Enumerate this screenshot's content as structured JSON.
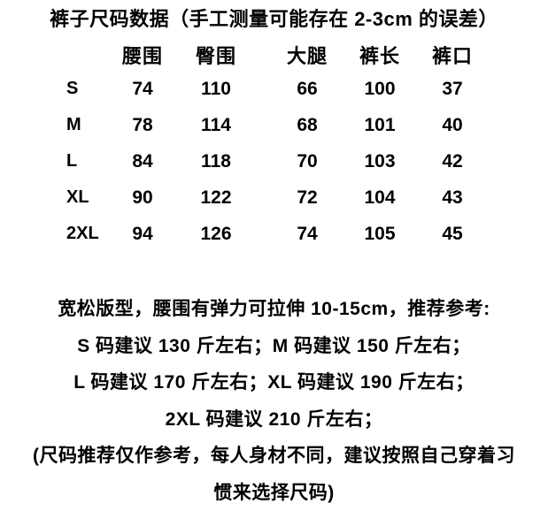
{
  "page": {
    "background": "#ffffff",
    "text_color": "#000000",
    "title": "裤子尺码数据（手工测量可能存在 2-3cm 的误差）"
  },
  "size_table": {
    "columns": [
      "腰围",
      "臀围",
      "大腿",
      "裤长",
      "裤口"
    ],
    "rows": [
      {
        "size": "S",
        "values": [
          74,
          110,
          66,
          100,
          37
        ]
      },
      {
        "size": "M",
        "values": [
          78,
          114,
          68,
          101,
          40
        ]
      },
      {
        "size": "L",
        "values": [
          84,
          118,
          70,
          103,
          42
        ]
      },
      {
        "size": "XL",
        "values": [
          90,
          122,
          72,
          104,
          43
        ]
      },
      {
        "size": "2XL",
        "values": [
          94,
          126,
          74,
          105,
          45
        ]
      }
    ]
  },
  "notes": {
    "lines": [
      "宽松版型，腰围有弹力可拉伸 10-15cm，推荐参考:",
      "S 码建议 130 斤左右；M 码建议 150 斤左右；",
      "L 码建议 170 斤左右；XL 码建议 190 斤左右；",
      "2XL 码建议 210 斤左右；",
      "(尺码推荐仅作参考，每人身材不同，建议按照自己穿着习",
      "惯来选择尺码)"
    ]
  }
}
